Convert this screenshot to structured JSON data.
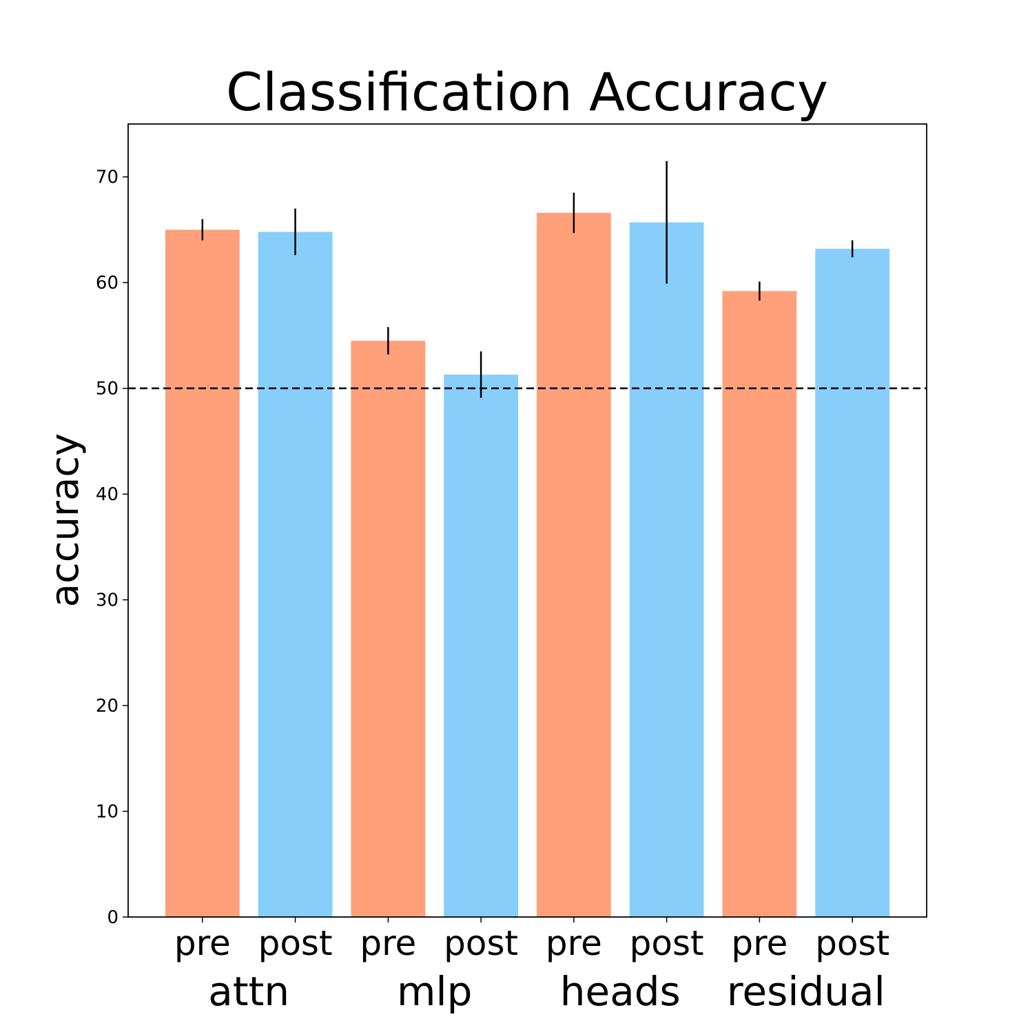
{
  "chart_data": {
    "type": "bar",
    "title": "Classification Accuracy",
    "xlabel": "",
    "ylabel": "accuracy",
    "ylim": [
      0,
      75
    ],
    "yticks": [
      0,
      10,
      20,
      30,
      40,
      50,
      60,
      70
    ],
    "grid": false,
    "legend": "none",
    "reference_line": {
      "y": 50,
      "style": "dashed",
      "color": "#000000"
    },
    "groups": [
      "attn",
      "mlp",
      "heads",
      "residual"
    ],
    "categories": [
      "pre",
      "post",
      "pre",
      "post",
      "pre",
      "post",
      "pre",
      "post"
    ],
    "values": [
      65.0,
      64.8,
      54.5,
      51.3,
      66.6,
      65.7,
      59.2,
      63.2
    ],
    "errors": [
      1.0,
      2.2,
      1.3,
      2.2,
      1.9,
      5.8,
      0.9,
      0.8
    ],
    "colors": {
      "pre": "#FFA07A",
      "post": "#87CEFA"
    }
  }
}
